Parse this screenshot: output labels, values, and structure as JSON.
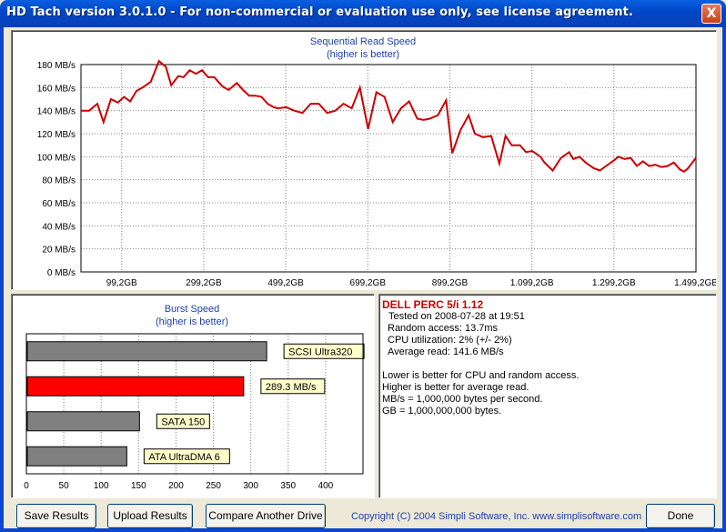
{
  "window": {
    "title": "HD Tach version 3.0.1.0  - For non-commercial or evaluation use only, see license agreement.",
    "close_glyph": "X"
  },
  "sequential": {
    "title": "Sequential Read Speed",
    "subtitle": "(higher is better)"
  },
  "burst": {
    "title": "Burst Speed",
    "subtitle": "(higher is better)"
  },
  "info": {
    "drive": "DELL PERC 5/i 1.12",
    "lines": [
      "Tested on 2008-07-28 at 19:51",
      "Random access: 13.7ms",
      "CPU utilization: 2% (+/- 2%)",
      "Average read: 141.6 MB/s"
    ],
    "notes": [
      "Lower is better for CPU and random access.",
      "Higher is better for average read.",
      "MB/s = 1,000,000 bytes per second.",
      "GB = 1,000,000,000 bytes."
    ]
  },
  "buttons": {
    "save": "Save Results",
    "upload": "Upload Results",
    "compare": "Compare Another Drive",
    "done": "Done"
  },
  "copyright": "Copyright (C) 2004 Simpli Software, Inc. www.simplisoftware.com",
  "colors": {
    "line": "#cc0000",
    "grid": "#808080",
    "accent_text": "#1f3fa8",
    "bar_gray": "#808080",
    "bar_red": "#ff0000",
    "label_bg": "#ffffcc"
  },
  "chart_data": [
    {
      "type": "line",
      "title": "Sequential Read Speed",
      "subtitle": "(higher is better)",
      "ylim": [
        0,
        180
      ],
      "xlim": [
        0,
        1499.2
      ],
      "y_ticks": [
        {
          "v": 0,
          "label": "0 MB/s"
        },
        {
          "v": 20,
          "label": "20 MB/s"
        },
        {
          "v": 40,
          "label": "40 MB/s"
        },
        {
          "v": 60,
          "label": "60 MB/s"
        },
        {
          "v": 80,
          "label": "80 MB/s"
        },
        {
          "v": 100,
          "label": "100 MB/s"
        },
        {
          "v": 120,
          "label": "120 MB/s"
        },
        {
          "v": 140,
          "label": "140 MB/s"
        },
        {
          "v": 160,
          "label": "160 MB/s"
        },
        {
          "v": 180,
          "label": "180 MB/s"
        }
      ],
      "x_ticks": [
        {
          "v": 99.2,
          "label": "99,2GB"
        },
        {
          "v": 299.2,
          "label": "299,2GB"
        },
        {
          "v": 499.2,
          "label": "499,2GB"
        },
        {
          "v": 699.2,
          "label": "699,2GB"
        },
        {
          "v": 899.2,
          "label": "899,2GB"
        },
        {
          "v": 1099.2,
          "label": "1.099,2GB"
        },
        {
          "v": 1299.2,
          "label": "1.299,2GB"
        },
        {
          "v": 1499.2,
          "label": "1.499,2GB"
        }
      ],
      "grid": true,
      "series": [
        {
          "x": [
            0,
            20,
            40,
            55,
            73,
            90,
            105,
            120,
            135,
            150,
            170,
            190,
            207,
            220,
            237,
            250,
            265,
            280,
            295,
            310,
            325,
            345,
            360,
            380,
            395,
            410,
            425,
            440,
            455,
            470,
            480,
            500,
            520,
            540,
            560,
            580,
            600,
            620,
            640,
            660,
            680,
            700,
            720,
            740,
            760,
            780,
            800,
            820,
            835,
            850,
            870,
            890,
            905,
            925,
            945,
            960,
            980,
            1000,
            1020,
            1035,
            1050,
            1070,
            1085,
            1100,
            1120,
            1130,
            1150,
            1170,
            1190,
            1200,
            1215,
            1230,
            1250,
            1265,
            1280,
            1300,
            1310,
            1325,
            1340,
            1355,
            1370,
            1385,
            1400,
            1415,
            1430,
            1445,
            1460,
            1470,
            1480,
            1499
          ],
          "y": [
            140,
            140,
            146,
            130,
            150,
            147,
            152,
            148,
            157,
            160,
            165,
            183,
            178,
            162,
            170,
            169,
            175,
            172,
            175,
            169,
            169,
            161,
            158,
            164,
            158,
            153,
            153,
            152,
            146,
            143,
            142,
            143,
            140,
            138,
            146,
            146,
            138,
            140,
            146,
            142,
            160,
            124,
            156,
            152,
            130,
            142,
            148,
            133,
            132,
            133,
            136,
            149,
            103,
            123,
            136,
            120,
            117,
            118,
            94,
            118,
            110,
            110,
            104,
            105,
            100,
            95,
            88,
            99,
            104,
            98,
            100,
            95,
            90,
            88,
            92,
            97,
            100,
            98,
            99,
            92,
            96,
            92,
            93,
            91,
            92,
            95,
            89,
            87,
            90,
            99
          ]
        }
      ]
    },
    {
      "type": "bar",
      "orientation": "horizontal",
      "title": "Burst Speed",
      "subtitle": "(higher is better)",
      "xlim": [
        0,
        450
      ],
      "x_ticks": [
        0,
        50,
        100,
        150,
        200,
        250,
        300,
        350,
        400
      ],
      "bars": [
        {
          "label": "SCSI Ultra320",
          "value": 320,
          "highlight": false
        },
        {
          "label": "289.3 MB/s",
          "value": 289.3,
          "highlight": true
        },
        {
          "label": "SATA 150",
          "value": 150,
          "highlight": false
        },
        {
          "label": "ATA UltraDMA 6",
          "value": 133,
          "highlight": false
        }
      ]
    }
  ]
}
